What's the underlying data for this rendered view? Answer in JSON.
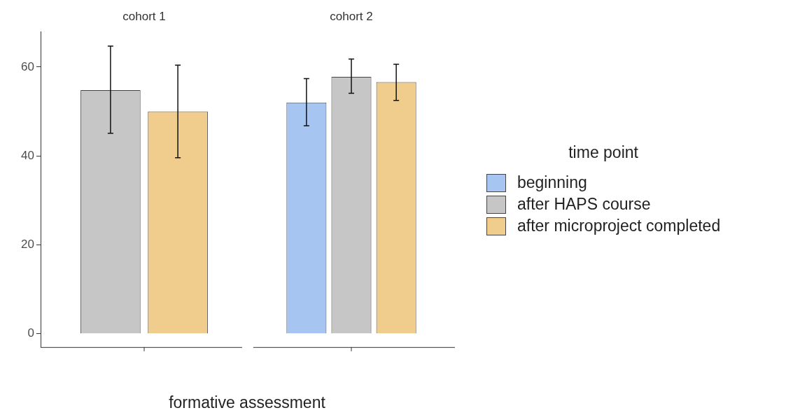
{
  "chart_data": {
    "type": "bar",
    "categories": [
      "cohort 1",
      "cohort 2"
    ],
    "xlabel": "formative assessment",
    "ylim": [
      -3,
      68
    ],
    "yticks": [
      0,
      20,
      40,
      60
    ],
    "grid": false,
    "legend": "right",
    "legend_title": "time point",
    "series": [
      {
        "name": "beginning",
        "color": "#a6c5f1",
        "values": [
          null,
          52.0
        ],
        "errors": [
          null,
          [
            46.8,
            57.4
          ]
        ]
      },
      {
        "name": "after HAPS course",
        "color": "#c6c6c6",
        "values": [
          54.8,
          57.8
        ],
        "errors": [
          [
            45.1,
            64.7
          ],
          [
            54.1,
            61.8
          ]
        ]
      },
      {
        "name": "after microproject completed",
        "color": "#f0cd8c",
        "values": [
          50.0,
          56.6
        ],
        "errors": [
          [
            39.6,
            60.4
          ],
          [
            52.5,
            60.6
          ]
        ]
      }
    ]
  }
}
